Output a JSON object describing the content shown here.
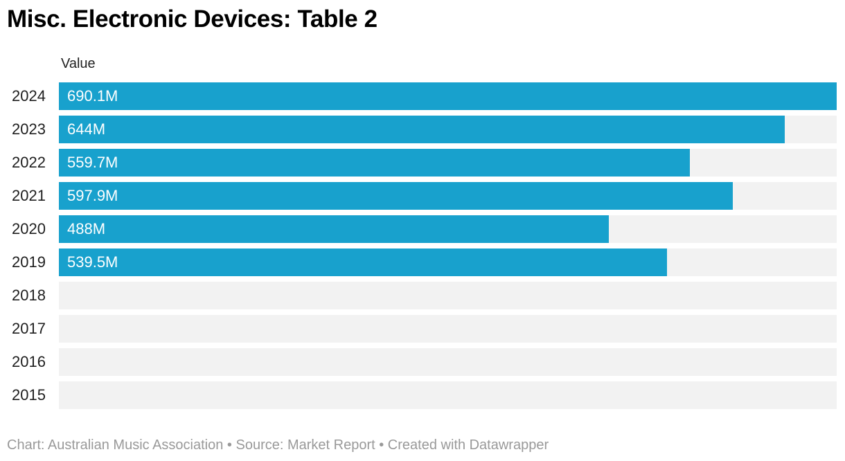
{
  "chart_data": {
    "type": "bar",
    "orientation": "horizontal",
    "title": "Misc. Electronic Devices: Table 2",
    "value_column_label": "Value",
    "categories": [
      "2024",
      "2023",
      "2022",
      "2021",
      "2020",
      "2019",
      "2018",
      "2017",
      "2016",
      "2015"
    ],
    "values": [
      690.1,
      644,
      559.7,
      597.9,
      488,
      539.5,
      null,
      null,
      null,
      null
    ],
    "value_labels": [
      "690.1M",
      "644M",
      "559.7M",
      "597.9M",
      "488M",
      "539.5M",
      "",
      "",
      "",
      ""
    ],
    "unit": "M",
    "xlabel": "",
    "ylabel": "",
    "xlim": [
      0,
      690.1
    ],
    "grid": false,
    "legend": false,
    "empty_rows_shown_as_tracks": [
      "2018",
      "2017",
      "2016",
      "2015"
    ]
  },
  "footer": {
    "text": "Chart: Australian Music Association • Source: Market Report • Created with Datawrapper"
  },
  "colors": {
    "bar-color": "#18a1cd",
    "track-color": "#f2f2f2",
    "title-color": "#000000",
    "label-color": "#1f1f1f",
    "value-label-color": "#ffffff",
    "footer-color": "#999999"
  }
}
